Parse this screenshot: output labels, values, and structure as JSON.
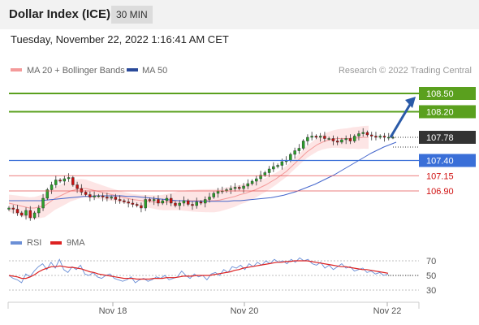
{
  "header": {
    "title": "Dollar Index (ICE)",
    "timeframe": "30 MIN"
  },
  "timestamp": "Tuesday, November 22, 2022 1:16:41 AM CET",
  "legend": {
    "ma20_label": "MA 20 + Bollinger Bands",
    "ma50_label": "MA 50",
    "credit": "Research © 2022 Trading Central",
    "rsi_label": "RSI",
    "ma9_label": "9MA"
  },
  "colors": {
    "green": "#5aa01e",
    "blue": "#3a6fd8",
    "red": "#e55050",
    "candle_up": "#2aa02a",
    "candle_down": "#c81010",
    "band_fill": "#fde2e2",
    "ma20": "#f49a9a",
    "ma50": "#4466cc",
    "current_tag": "#333333",
    "rsi": "#6b8fd6",
    "ma9": "#dd2222",
    "arrow": "#2a5aa8"
  },
  "chart_data": [
    {
      "type": "candlestick",
      "title": "Dollar Index (ICE)",
      "ylim": [
        106.3,
        108.7
      ],
      "x_ticks": [
        "Nov 18",
        "Nov 20",
        "Nov 22"
      ],
      "current_price": "107.78",
      "levels": [
        {
          "label": "108.50",
          "value": 108.5,
          "kind": "resistance",
          "color": "green"
        },
        {
          "label": "108.20",
          "value": 108.2,
          "kind": "resistance",
          "color": "green"
        },
        {
          "label": "107.40",
          "value": 107.4,
          "kind": "pivot",
          "color": "blue"
        },
        {
          "label": "107.15",
          "value": 107.15,
          "kind": "support",
          "color": "red"
        },
        {
          "label": "106.90",
          "value": 106.9,
          "kind": "support",
          "color": "red"
        }
      ],
      "closes": [
        106.62,
        106.6,
        106.54,
        106.5,
        106.58,
        106.46,
        106.54,
        106.62,
        106.78,
        106.92,
        107.0,
        107.08,
        107.06,
        107.1,
        107.12,
        107.0,
        106.94,
        106.88,
        106.84,
        106.8,
        106.82,
        106.82,
        106.8,
        106.78,
        106.8,
        106.76,
        106.74,
        106.72,
        106.7,
        106.68,
        106.66,
        106.62,
        106.76,
        106.74,
        106.76,
        106.7,
        106.74,
        106.78,
        106.7,
        106.66,
        106.7,
        106.74,
        106.68,
        106.66,
        106.72,
        106.7,
        106.76,
        106.8,
        106.86,
        106.9,
        106.9,
        106.92,
        106.94,
        106.96,
        106.94,
        106.98,
        107.02,
        107.06,
        107.1,
        107.16,
        107.2,
        107.26,
        107.3,
        107.32,
        107.38,
        107.4,
        107.5,
        107.56,
        107.6,
        107.72,
        107.78,
        107.8,
        107.78,
        107.8,
        107.76,
        107.76,
        107.72,
        107.7,
        107.74,
        107.76,
        107.72,
        107.8,
        107.84,
        107.86,
        107.82,
        107.8,
        107.78,
        107.8,
        107.78,
        107.78,
        107.78
      ],
      "ma20": [
        106.7,
        106.68,
        106.66,
        106.64,
        106.62,
        106.62,
        106.64,
        106.66,
        106.72,
        106.78,
        106.82,
        106.86,
        106.9,
        106.92,
        106.94,
        106.94,
        106.92,
        106.9,
        106.88,
        106.86,
        106.84,
        106.82,
        106.8,
        106.78,
        106.76,
        106.75,
        106.74,
        106.73,
        106.72,
        106.71,
        106.71,
        106.72,
        106.73,
        106.74,
        106.74,
        106.74,
        106.74,
        106.74,
        106.74,
        106.74,
        106.74,
        106.75,
        106.77,
        106.79,
        106.81,
        106.84,
        106.86,
        106.89,
        106.92,
        106.96,
        107.0,
        107.05,
        107.1,
        107.16,
        107.22,
        107.3,
        107.38,
        107.46,
        107.54,
        107.6,
        107.66,
        107.7,
        107.73,
        107.75,
        107.76,
        107.76,
        107.76,
        107.77,
        107.77,
        107.78,
        107.78
      ],
      "ma50": [
        106.74,
        106.74,
        106.74,
        106.74,
        106.74,
        106.74,
        106.75,
        106.76,
        106.77,
        106.78,
        106.79,
        106.8,
        106.81,
        106.81,
        106.82,
        106.82,
        106.82,
        106.82,
        106.82,
        106.81,
        106.81,
        106.8,
        106.79,
        106.78,
        106.77,
        106.76,
        106.75,
        106.74,
        106.74,
        106.73,
        106.73,
        106.73,
        106.73,
        106.73,
        106.73,
        106.73,
        106.74,
        106.74,
        106.75,
        106.76,
        106.77,
        106.78,
        106.79,
        106.81,
        106.83,
        106.86,
        106.89,
        106.93,
        106.97,
        107.01,
        107.06,
        107.11,
        107.16,
        107.22,
        107.28,
        107.34,
        107.4,
        107.46,
        107.52,
        107.57,
        107.62,
        107.66,
        107.7
      ]
    },
    {
      "type": "line",
      "title": "RSI",
      "ylim": [
        20,
        80
      ],
      "y_ticks": [
        70,
        50,
        30
      ],
      "series": [
        {
          "name": "RSI",
          "values": [
            50,
            46,
            44,
            40,
            52,
            48,
            56,
            62,
            66,
            58,
            68,
            60,
            72,
            58,
            54,
            62,
            58,
            64,
            52,
            50,
            54,
            48,
            46,
            50,
            52,
            46,
            44,
            42,
            44,
            48,
            40,
            44,
            46,
            42,
            44,
            48,
            46,
            50,
            44,
            46,
            48,
            56,
            50,
            46,
            52,
            48,
            50,
            44,
            52,
            54,
            50,
            58,
            54,
            62,
            60,
            64,
            58,
            66,
            62,
            68,
            64,
            70,
            66,
            72,
            68,
            70,
            66,
            72,
            68,
            74,
            70,
            72,
            66,
            64,
            68,
            60,
            64,
            58,
            62,
            66,
            60,
            62,
            56,
            58,
            60,
            54,
            56,
            52,
            54,
            50,
            52
          ]
        },
        {
          "name": "9MA",
          "values": [
            50,
            49,
            48,
            46,
            46,
            48,
            51,
            55,
            58,
            60,
            62,
            62,
            63,
            62,
            61,
            61,
            60,
            59,
            57,
            55,
            54,
            52,
            51,
            50,
            49,
            48,
            47,
            46,
            46,
            46,
            45,
            45,
            45,
            45,
            46,
            46,
            46,
            47,
            47,
            47,
            48,
            49,
            49,
            49,
            50,
            50,
            50,
            50,
            51,
            52,
            53,
            54,
            55,
            57,
            58,
            60,
            61,
            62,
            63,
            64,
            65,
            66,
            67,
            68,
            68,
            69,
            69,
            70,
            70,
            70,
            70,
            69,
            68,
            67,
            66,
            65,
            64,
            63,
            62,
            62,
            61,
            60,
            59,
            58,
            58,
            57,
            56,
            55,
            54,
            53
          ]
        }
      ]
    }
  ]
}
